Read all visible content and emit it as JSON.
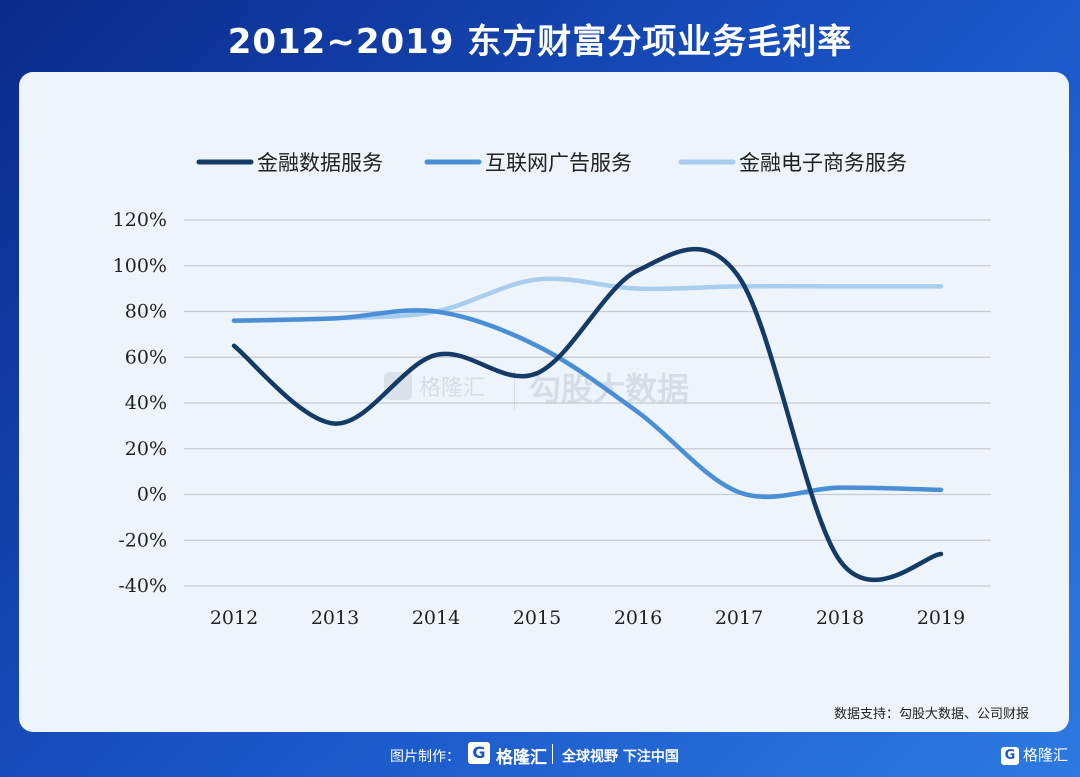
{
  "title": "2012~2019 东方财富分项业务毛利率",
  "chart_data": {
    "type": "line",
    "categories": [
      "2012",
      "2013",
      "2014",
      "2015",
      "2016",
      "2017",
      "2018",
      "2019"
    ],
    "series": [
      {
        "name": "金融数据服务",
        "color": "#143a66",
        "values": [
          65,
          31,
          61,
          53,
          98,
          95,
          -29,
          -26
        ]
      },
      {
        "name": "互联网广告服务",
        "color": "#4a8fd6",
        "values": [
          76,
          77,
          80,
          65,
          36,
          1,
          3,
          2
        ]
      },
      {
        "name": "金融电子商务服务",
        "color": "#a8cdee",
        "values": [
          76,
          77,
          80,
          94,
          90,
          91,
          91,
          91
        ]
      }
    ],
    "yticks": [
      "120%",
      "100%",
      "80%",
      "60%",
      "40%",
      "20%",
      "0%",
      "-20%",
      "-40%"
    ],
    "ylim": [
      -40,
      120
    ],
    "grid": true,
    "legend": "top"
  },
  "watermark": {
    "brand": "格隆汇",
    "text": "勾股大数据"
  },
  "source": "数据支持：勾股大数据、公司财报",
  "footer": {
    "credit": "图片制作：",
    "brand": "格隆汇",
    "slogan": "全球视野 下注中国",
    "logo_mark": "G"
  }
}
